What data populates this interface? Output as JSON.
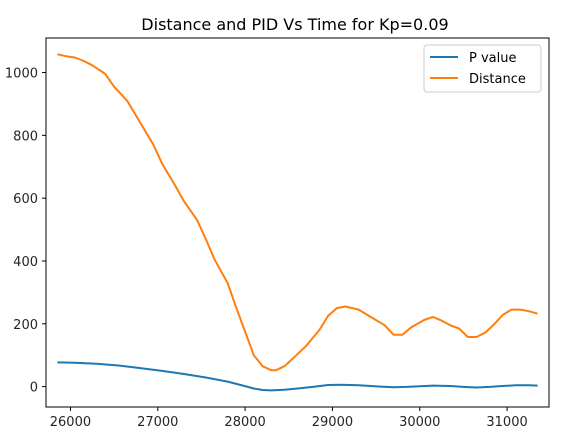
{
  "chart_data": {
    "type": "line",
    "title": "Distance and PID Vs Time for Kp=0.09",
    "xlabel": "",
    "ylabel": "",
    "xlim": [
      25720,
      31480
    ],
    "ylim": [
      -65,
      1110
    ],
    "xticks": [
      26000,
      27000,
      28000,
      29000,
      30000,
      31000
    ],
    "yticks": [
      0,
      200,
      400,
      600,
      800,
      1000
    ],
    "grid": false,
    "legend_position": "top-right",
    "series": [
      {
        "name": "P value",
        "color": "#1f77b4",
        "x": [
          25850,
          26050,
          26300,
          26550,
          26800,
          27050,
          27300,
          27550,
          27800,
          27950,
          28100,
          28200,
          28300,
          28450,
          28600,
          28800,
          28950,
          29100,
          29300,
          29550,
          29700,
          29850,
          30000,
          30150,
          30350,
          30500,
          30650,
          30800,
          30950,
          31100,
          31250,
          31350
        ],
        "y": [
          77,
          76,
          73,
          67,
          59,
          50,
          40,
          29,
          16,
          5,
          -6,
          -11,
          -12,
          -10,
          -6,
          0,
          5,
          6,
          4,
          0,
          -2,
          -1,
          1,
          3,
          2,
          -1,
          -3,
          -1,
          2,
          4,
          4,
          3
        ]
      },
      {
        "name": "Distance",
        "color": "#ff7f0e",
        "x": [
          25850,
          25950,
          26050,
          26150,
          26250,
          26350,
          26400,
          26500,
          26650,
          26800,
          26950,
          27050,
          27200,
          27300,
          27450,
          27550,
          27650,
          27800,
          27900,
          28000,
          28100,
          28200,
          28300,
          28350,
          28450,
          28550,
          28700,
          28850,
          28950,
          29050,
          29150,
          29300,
          29450,
          29600,
          29700,
          29800,
          29900,
          30050,
          30150,
          30250,
          30350,
          30450,
          30550,
          30650,
          30750,
          30850,
          30950,
          31050,
          31150,
          31250,
          31350
        ],
        "y": [
          1058,
          1052,
          1048,
          1037,
          1023,
          1005,
          995,
          955,
          910,
          840,
          770,
          710,
          640,
          590,
          530,
          470,
          405,
          330,
          250,
          175,
          100,
          65,
          52,
          52,
          65,
          90,
          130,
          180,
          225,
          250,
          255,
          245,
          220,
          195,
          165,
          165,
          188,
          212,
          222,
          210,
          195,
          185,
          158,
          158,
          172,
          198,
          228,
          245,
          245,
          240,
          232
        ]
      }
    ]
  }
}
